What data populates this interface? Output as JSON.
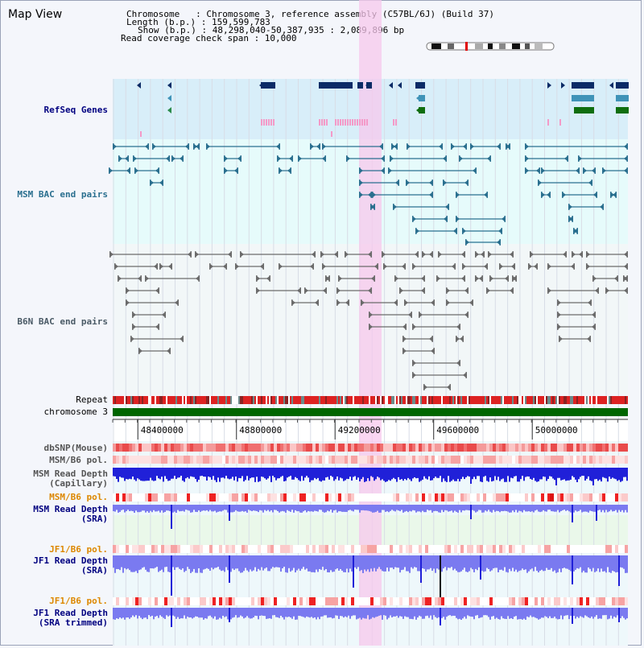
{
  "title": "Map View",
  "info": {
    "line1": "Chromosome   : Chromosome 3, reference assembly (C57BL/6J) (Build 37)",
    "line2": "Length (b.p.) : 159,599,783",
    "line3": "Show (b.p.) : 48,298,040-50,387,935 : 2,089,896 bp",
    "line4": "Read coverage check span : 10,000"
  },
  "tracks": {
    "refseq": "RefSeq Genes",
    "msm_bac": "MSM BAC end pairs",
    "b6n_bac": "B6N BAC end pairs",
    "repeat": "Repeat",
    "chromosome": "chromosome 3",
    "dbsnp": "dbSNP(Mouse)",
    "msm_b6_pol": "MSM/B6 pol.",
    "msm_depth_cap": "MSM Read Depth\n(Capillary)",
    "msm_b6_pol2": "MSM/B6 pol.",
    "msm_depth_sra": "MSM Read Depth\n(SRA)",
    "jf1_b6_pol": "JF1/B6 pol.",
    "jf1_depth_sra": "JF1 Read Depth\n(SRA)",
    "jf1_b6_pol2": "JF1/B6 pol.",
    "jf1_depth_trim": "JF1 Read Depth\n(SRA trimmed)"
  },
  "ruler": {
    "ticks": [
      "48400000",
      "48800000",
      "49200000",
      "49600000",
      "50000000"
    ],
    "tick_values": [
      48400000,
      48800000,
      49200000,
      49600000,
      50000000
    ],
    "range": [
      48298040,
      50387935
    ]
  },
  "colors": {
    "refseq_bg": "#d8eef9",
    "bac_bg": "#e6fbfb",
    "highlight": "#f7c8ec",
    "msm_bac": "#2a6f8f",
    "b6n_bac": "#6b6b6b",
    "gene_dark": "#0b2b66",
    "gene_teal": "#3f93b8",
    "gene_green": "#0f6e0f",
    "chromosome": "#006600",
    "depth_blue": "#1b1bdc",
    "depth_light": "#7c7cf2",
    "label_navy": "#000080",
    "label_orange": "#dd8800"
  }
}
